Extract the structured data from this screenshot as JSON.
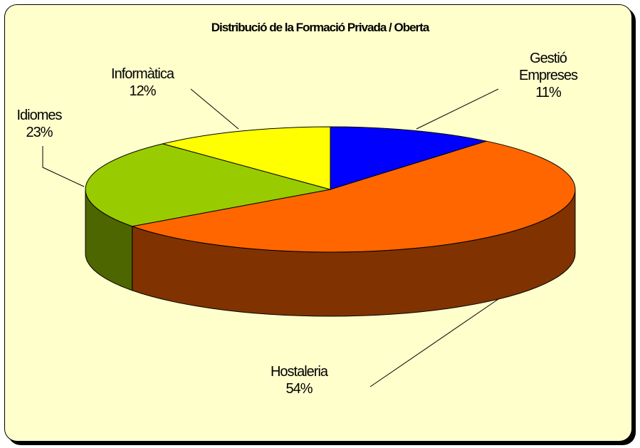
{
  "chart_data": {
    "type": "pie",
    "title": "Distribució de la Formació Privada / Oberta",
    "categories": [
      "Gestió Empreses",
      "Hostaleria",
      "Idiomes",
      "Informàtica"
    ],
    "values": [
      11,
      54,
      23,
      12
    ],
    "value_labels": [
      "11%",
      "54%",
      "23%",
      "12%"
    ],
    "colors": [
      "#0000ff",
      "#ff6600",
      "#99cc00",
      "#ffff00"
    ]
  }
}
